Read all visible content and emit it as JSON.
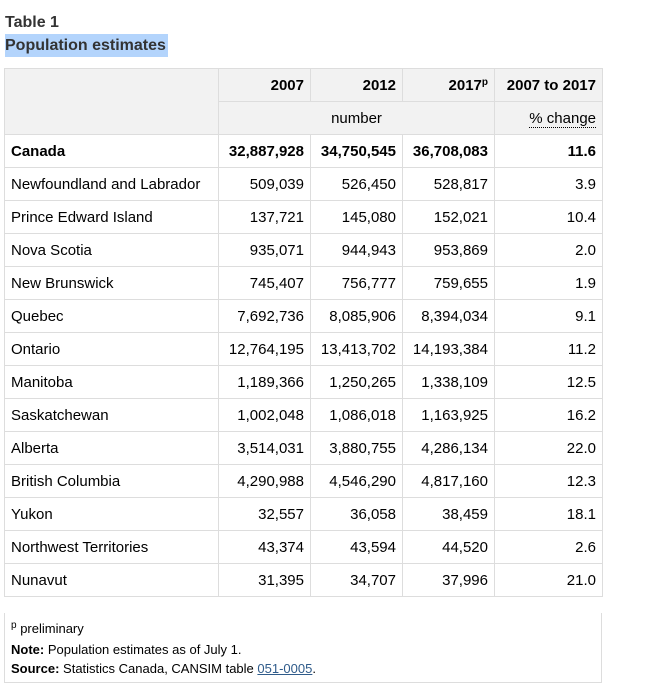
{
  "caption": {
    "label": "Table 1",
    "title": "Population estimates"
  },
  "header": {
    "columns": [
      "2007",
      "2012",
      "2017",
      "2007 to 2017"
    ],
    "preliminary_mark": "p",
    "unit_number": "number",
    "unit_pct": "% change"
  },
  "rows": [
    {
      "label": "Canada",
      "v2007": "32,887,928",
      "v2012": "34,750,545",
      "v2017": "36,708,083",
      "pct": "11.6",
      "bold": true
    },
    {
      "label": "Newfoundland and Labrador",
      "v2007": "509,039",
      "v2012": "526,450",
      "v2017": "528,817",
      "pct": "3.9"
    },
    {
      "label": "Prince Edward Island",
      "v2007": "137,721",
      "v2012": "145,080",
      "v2017": "152,021",
      "pct": "10.4"
    },
    {
      "label": "Nova Scotia",
      "v2007": "935,071",
      "v2012": "944,943",
      "v2017": "953,869",
      "pct": "2.0"
    },
    {
      "label": "New Brunswick",
      "v2007": "745,407",
      "v2012": "756,777",
      "v2017": "759,655",
      "pct": "1.9"
    },
    {
      "label": "Quebec",
      "v2007": "7,692,736",
      "v2012": "8,085,906",
      "v2017": "8,394,034",
      "pct": "9.1"
    },
    {
      "label": "Ontario",
      "v2007": "12,764,195",
      "v2012": "13,413,702",
      "v2017": "14,193,384",
      "pct": "11.2"
    },
    {
      "label": "Manitoba",
      "v2007": "1,189,366",
      "v2012": "1,250,265",
      "v2017": "1,338,109",
      "pct": "12.5"
    },
    {
      "label": "Saskatchewan",
      "v2007": "1,002,048",
      "v2012": "1,086,018",
      "v2017": "1,163,925",
      "pct": "16.2"
    },
    {
      "label": "Alberta",
      "v2007": "3,514,031",
      "v2012": "3,880,755",
      "v2017": "4,286,134",
      "pct": "22.0"
    },
    {
      "label": "British Columbia",
      "v2007": "4,290,988",
      "v2012": "4,546,290",
      "v2017": "4,817,160",
      "pct": "12.3"
    },
    {
      "label": "Yukon",
      "v2007": "32,557",
      "v2012": "36,058",
      "v2017": "38,459",
      "pct": "18.1"
    },
    {
      "label": "Northwest Territories",
      "v2007": "43,374",
      "v2012": "43,594",
      "v2017": "44,520",
      "pct": "2.6"
    },
    {
      "label": "Nunavut",
      "v2007": "31,395",
      "v2012": "34,707",
      "v2017": "37,996",
      "pct": "21.0"
    }
  ],
  "footnotes": {
    "preliminary_mark": "p",
    "preliminary_text": "preliminary",
    "note_label": "Note:",
    "note_text": "Population estimates as of July 1.",
    "source_label": "Source:",
    "source_text": "Statistics Canada, CANSIM table",
    "source_link": "051-0005",
    "source_end": "."
  }
}
